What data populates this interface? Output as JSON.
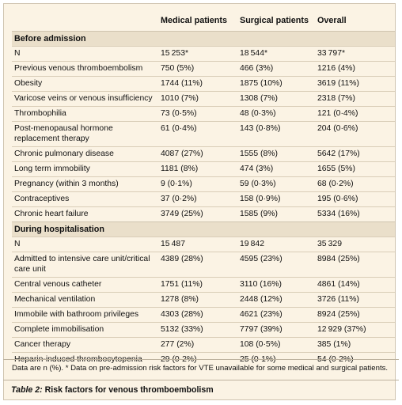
{
  "columns": [
    "",
    "Medical patients",
    "Surgical patients",
    "Overall"
  ],
  "sections": [
    {
      "title": "Before admission",
      "rows": [
        {
          "label": "N",
          "medical": "15 253*",
          "surgical": "18 544*",
          "overall": "33 797*"
        },
        {
          "label": "Previous venous thromboembolism",
          "medical": "750 (5%)",
          "surgical": "466 (3%)",
          "overall": "1216 (4%)"
        },
        {
          "label": "Obesity",
          "medical": "1744 (11%)",
          "surgical": "1875 (10%)",
          "overall": "3619 (11%)"
        },
        {
          "label": "Varicose veins or venous insufficiency",
          "medical": "1010 (7%)",
          "surgical": "1308 (7%)",
          "overall": "2318 (7%)"
        },
        {
          "label": "Thrombophilia",
          "medical": "73 (0·5%)",
          "surgical": "48 (0·3%)",
          "overall": "121 (0·4%)"
        },
        {
          "label": "Post-menopausal hormone replacement therapy",
          "medical": "61 (0·4%)",
          "surgical": "143 (0·8%)",
          "overall": "204 (0·6%)"
        },
        {
          "label": "Chronic pulmonary disease",
          "medical": "4087 (27%)",
          "surgical": "1555 (8%)",
          "overall": "5642 (17%)"
        },
        {
          "label": "Long term immobility",
          "medical": "1181 (8%)",
          "surgical": "474 (3%)",
          "overall": "1655 (5%)"
        },
        {
          "label": "Pregnancy (within 3 months)",
          "medical": "9 (0·1%)",
          "surgical": "59 (0·3%)",
          "overall": "68 (0·2%)"
        },
        {
          "label": "Contraceptives",
          "medical": "37 (0·2%)",
          "surgical": "158 (0·9%)",
          "overall": "195 (0·6%)"
        },
        {
          "label": "Chronic heart failure",
          "medical": "3749 (25%)",
          "surgical": "1585 (9%)",
          "overall": "5334 (16%)"
        }
      ]
    },
    {
      "title": "During hospitalisation",
      "rows": [
        {
          "label": "N",
          "medical": "15 487",
          "surgical": "19 842",
          "overall": "35 329"
        },
        {
          "label": "Admitted to intensive care unit/critical care unit",
          "medical": "4389 (28%)",
          "surgical": "4595 (23%)",
          "overall": "8984 (25%)"
        },
        {
          "label": "Central venous catheter",
          "medical": "1751 (11%)",
          "surgical": "3110 (16%)",
          "overall": "4861 (14%)"
        },
        {
          "label": "Mechanical ventilation",
          "medical": "1278 (8%)",
          "surgical": "2448 (12%)",
          "overall": "3726 (11%)"
        },
        {
          "label": "Immobile with bathroom privileges",
          "medical": "4303 (28%)",
          "surgical": "4621 (23%)",
          "overall": "8924 (25%)"
        },
        {
          "label": "Complete immobilisation",
          "medical": "5132 (33%)",
          "surgical": "7797 (39%)",
          "overall": "12 929 (37%)"
        },
        {
          "label": "Cancer therapy",
          "medical": "277 (2%)",
          "surgical": "108 (0·5%)",
          "overall": "385 (1%)"
        },
        {
          "label": "Heparin-induced thrombocytopenia",
          "medical": "29 (0·2%)",
          "surgical": "25 (0·1%)",
          "overall": "54 (0·2%)"
        }
      ]
    }
  ],
  "footnote": "Data are n (%). * Data on pre-admission risk factors for VTE unavailable for some medical and surgical patients.",
  "caption": {
    "label": "Table 2:",
    "text": "Risk factors for venous thromboembolism"
  }
}
